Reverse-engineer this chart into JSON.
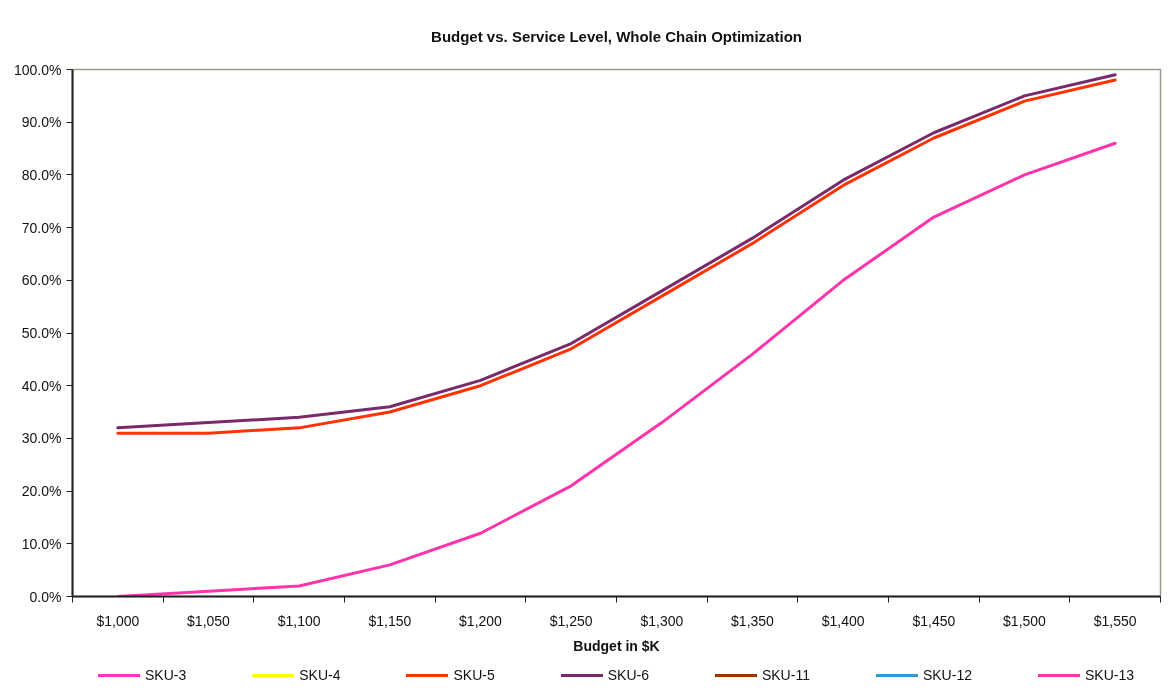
{
  "chart_data": {
    "type": "line",
    "title": "Budget vs. Service Level, Whole Chain Optimization",
    "xlabel": "Budget in $K",
    "categories": [
      "$1,000",
      "$1,050",
      "$1,100",
      "$1,150",
      "$1,200",
      "$1,250",
      "$1,300",
      "$1,350",
      "$1,400",
      "$1,450",
      "$1,500",
      "$1,550"
    ],
    "series": [
      {
        "name": "SKU-3",
        "color": "#ff33cc",
        "values": [
          null,
          null,
          null,
          null,
          null,
          null,
          null,
          null,
          null,
          null,
          null,
          null
        ]
      },
      {
        "name": "SKU-4",
        "color": "#ffff00",
        "values": [
          null,
          null,
          null,
          null,
          null,
          null,
          null,
          null,
          null,
          null,
          null,
          null
        ]
      },
      {
        "name": "SKU-5",
        "color": "#ff3300",
        "values": [
          31,
          31,
          32,
          35,
          40,
          47,
          57,
          67,
          78,
          87,
          94,
          98
        ]
      },
      {
        "name": "SKU-6",
        "color": "#7a2a6a",
        "values": [
          32,
          33,
          34,
          36,
          41,
          48,
          58,
          68,
          79,
          88,
          95,
          99
        ]
      },
      {
        "name": "SKU-11",
        "color": "#993300",
        "values": [
          null,
          null,
          null,
          null,
          null,
          null,
          null,
          null,
          null,
          null,
          null,
          null
        ]
      },
      {
        "name": "SKU-12",
        "color": "#3399cc",
        "values": [
          null,
          null,
          null,
          null,
          null,
          null,
          null,
          null,
          null,
          null,
          null,
          null
        ]
      },
      {
        "name": "SKU-13",
        "color": "#ff33aa",
        "values": [
          0,
          1,
          2,
          6,
          12,
          21,
          33,
          46,
          60,
          72,
          80,
          86
        ]
      }
    ],
    "ylim": [
      0,
      100
    ],
    "yticks": [
      {
        "value": 0,
        "label": "0.0%"
      },
      {
        "value": 10,
        "label": "10.0%"
      },
      {
        "value": 20,
        "label": "20.0%"
      },
      {
        "value": 30,
        "label": "30.0%"
      },
      {
        "value": 40,
        "label": "40.0%"
      },
      {
        "value": 50,
        "label": "50.0%"
      },
      {
        "value": 60,
        "label": "60.0%"
      },
      {
        "value": 70,
        "label": "70.0%"
      },
      {
        "value": 80,
        "label": "80.0%"
      },
      {
        "value": 90,
        "label": "90.0%"
      },
      {
        "value": 100,
        "label": "100.0%"
      }
    ],
    "grid": false,
    "legend": "bottom"
  }
}
